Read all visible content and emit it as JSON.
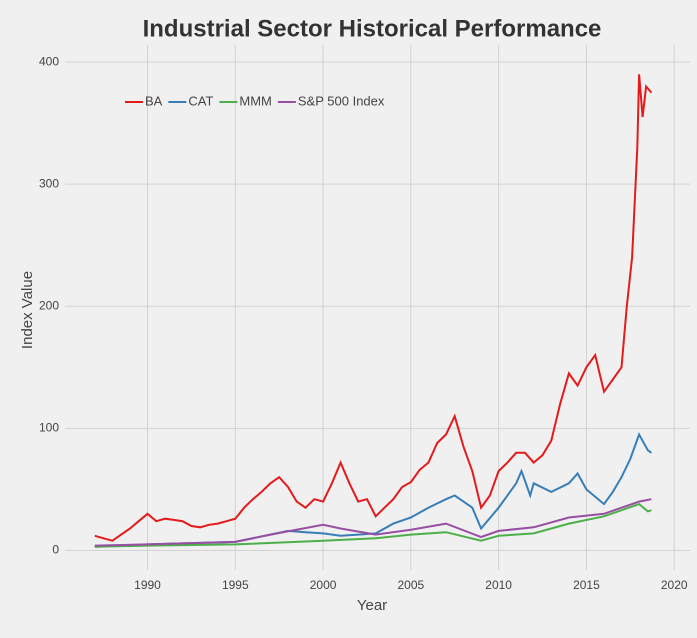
{
  "chart_data": {
    "type": "line",
    "title": "Industrial Sector Historical Performance",
    "x_label": "Year",
    "y_label": "Index Value",
    "xlim": [
      1985.3,
      2020.9
    ],
    "xticks": [
      1990,
      1995,
      2000,
      2005,
      2010,
      2015,
      2020
    ],
    "ylim": [
      -16,
      414
    ],
    "yticks": [
      0,
      100,
      200,
      300,
      400
    ],
    "grid": true,
    "legend": "top-left",
    "series": [
      {
        "name": "BA",
        "color": "#e41a1c",
        "x": [
          1987,
          1987.5,
          1988,
          1988.5,
          1989,
          1989.5,
          1990,
          1990.5,
          1991,
          1991.5,
          1992,
          1992.5,
          1993,
          1993.5,
          1994,
          1994.5,
          1995,
          1995.5,
          1996,
          1996.5,
          1997,
          1997.5,
          1998,
          1998.5,
          1999,
          1999.5,
          2000,
          2000.5,
          2001,
          2001.5,
          2002,
          2002.5,
          2003,
          2003.5,
          2004,
          2004.5,
          2005,
          2005.5,
          2006,
          2006.5,
          2007,
          2007.5,
          2008,
          2008.5,
          2009,
          2009.5,
          2010,
          2010.5,
          2011,
          2011.5,
          2012,
          2012.5,
          2013,
          2013.5,
          2014,
          2014.5,
          2015,
          2015.5,
          2016,
          2016.5,
          2017,
          2017.3,
          2017.6,
          2017.9,
          2018,
          2018.2,
          2018.4,
          2018.7
        ],
        "values": [
          12,
          10,
          8,
          13,
          18,
          24,
          30,
          24,
          26,
          25,
          24,
          20,
          19,
          21,
          22,
          24,
          26,
          35,
          42,
          48,
          55,
          60,
          52,
          40,
          35,
          42,
          40,
          55,
          72,
          55,
          40,
          42,
          28,
          35,
          42,
          52,
          56,
          66,
          72,
          88,
          95,
          110,
          85,
          65,
          35,
          45,
          65,
          72,
          80,
          80,
          72,
          78,
          90,
          120,
          145,
          135,
          150,
          160,
          130,
          140,
          150,
          200,
          240,
          330,
          390,
          355,
          380,
          375
        ]
      },
      {
        "name": "CAT",
        "color": "#377eb8",
        "x": [
          1987,
          1990,
          1995,
          1997,
          1998,
          1999,
          2000,
          2001,
          2002,
          2003,
          2004,
          2005,
          2006,
          2007,
          2007.5,
          2008,
          2008.5,
          2009,
          2010,
          2011,
          2011.3,
          2011.8,
          2012,
          2013,
          2014,
          2014.5,
          2015,
          2016,
          2016.5,
          2017,
          2017.5,
          2018,
          2018.5,
          2018.7
        ],
        "values": [
          3,
          5,
          7,
          13,
          16,
          15,
          14,
          12,
          13,
          14,
          22,
          27,
          35,
          42,
          45,
          40,
          35,
          18,
          35,
          55,
          65,
          45,
          55,
          48,
          55,
          63,
          50,
          38,
          48,
          60,
          75,
          95,
          82,
          80
        ]
      },
      {
        "name": "MMM",
        "color": "#4daf4a",
        "x": [
          1987,
          1990,
          1995,
          2000,
          2003,
          2005,
          2007,
          2009,
          2010,
          2012,
          2014,
          2016,
          2018,
          2018.5,
          2018.7
        ],
        "values": [
          3,
          4,
          5,
          8,
          10,
          13,
          15,
          8,
          12,
          14,
          22,
          28,
          38,
          32,
          33
        ]
      },
      {
        "name": "S&P 500 Index",
        "color": "#984ea3",
        "x": [
          1987,
          1990,
          1995,
          1997,
          2000,
          2001,
          2003,
          2005,
          2007,
          2009,
          2010,
          2012,
          2014,
          2016,
          2018,
          2018.7
        ],
        "values": [
          4,
          5,
          7,
          13,
          21,
          18,
          13,
          17,
          22,
          11,
          16,
          19,
          27,
          30,
          40,
          42
        ]
      }
    ]
  }
}
